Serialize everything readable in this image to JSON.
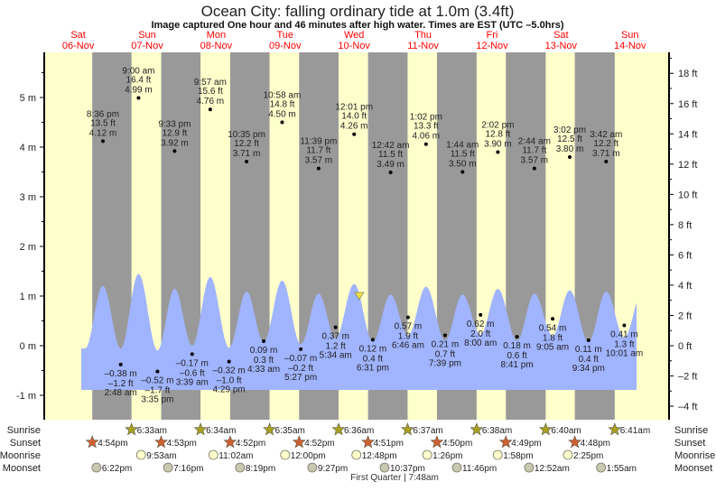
{
  "title": "Ocean City: falling  ordinary tide at 1.0m (3.4ft)",
  "subtitle": "Image captured One hour and 46 minutes after high water. Times are EST (UTC –5.0hrs)",
  "colors": {
    "day": "#ffffcc",
    "night": "#999999",
    "water": "#a0b4ff",
    "day_label": "#ff0000",
    "sunrise": "#a8a020",
    "sunset": "#d06030",
    "moonrise": "#ffffcc",
    "moonset": "#c8c8b0",
    "marker": "#f0e040"
  },
  "chart_data": {
    "type": "area",
    "title": "Ocean City: falling  ordinary tide at 1.0m (3.4ft)",
    "left_axis": {
      "unit": "m",
      "ylim": [
        -1.2,
        5.9
      ],
      "ticks": [
        -1,
        0,
        1,
        2,
        3,
        4,
        5
      ]
    },
    "right_axis": {
      "unit": "ft",
      "ticks": [
        -4,
        -2,
        0,
        2,
        4,
        6,
        8,
        10,
        12,
        14,
        16,
        18
      ]
    },
    "days": [
      {
        "dow": "Sat",
        "date": "06-Nov"
      },
      {
        "dow": "Sun",
        "date": "07-Nov"
      },
      {
        "dow": "Mon",
        "date": "08-Nov"
      },
      {
        "dow": "Tue",
        "date": "09-Nov"
      },
      {
        "dow": "Wed",
        "date": "10-Nov"
      },
      {
        "dow": "Thu",
        "date": "11-Nov"
      },
      {
        "dow": "Fri",
        "date": "12-Nov"
      },
      {
        "dow": "Sat",
        "date": "13-Nov"
      },
      {
        "dow": "Sun",
        "date": "14-Nov"
      }
    ],
    "current": {
      "day": "10-Nov",
      "time": "1:47 pm",
      "m": 1.0,
      "ft": 3.4
    },
    "tides": [
      {
        "type": "high",
        "day": "06-Nov",
        "time": "8:36 pm",
        "ft": "13.5 ft",
        "m": 4.12
      },
      {
        "type": "low",
        "day": "07-Nov",
        "time": "2:48 am",
        "ft": "–1.2 ft",
        "m": -0.38
      },
      {
        "type": "high",
        "day": "07-Nov",
        "time": "9:00 am",
        "ft": "16.4 ft",
        "m": 4.99
      },
      {
        "type": "low",
        "day": "07-Nov",
        "time": "3:35 pm",
        "ft": "–1.7 ft",
        "m": -0.52
      },
      {
        "type": "high",
        "day": "07-Nov",
        "time": "9:33 pm",
        "ft": "12.9 ft",
        "m": 3.92
      },
      {
        "type": "low",
        "day": "08-Nov",
        "time": "3:39 am",
        "ft": "–0.6 ft",
        "m": -0.17
      },
      {
        "type": "high",
        "day": "08-Nov",
        "time": "9:57 am",
        "ft": "15.6 ft",
        "m": 4.76
      },
      {
        "type": "low",
        "day": "08-Nov",
        "time": "4:29 pm",
        "ft": "–1.0 ft",
        "m": -0.32
      },
      {
        "type": "high",
        "day": "08-Nov",
        "time": "10:35 pm",
        "ft": "12.2 ft",
        "m": 3.71
      },
      {
        "type": "low",
        "day": "09-Nov",
        "time": "4:33 am",
        "ft": "0.3 ft",
        "m": 0.09
      },
      {
        "type": "high",
        "day": "09-Nov",
        "time": "10:58 am",
        "ft": "14.8 ft",
        "m": 4.5
      },
      {
        "type": "low",
        "day": "09-Nov",
        "time": "5:27 pm",
        "ft": "–0.2 ft",
        "m": -0.07
      },
      {
        "type": "high",
        "day": "09-Nov",
        "time": "11:39 pm",
        "ft": "11.7 ft",
        "m": 3.57
      },
      {
        "type": "low",
        "day": "10-Nov",
        "time": "5:34 am",
        "ft": "1.2 ft",
        "m": 0.37
      },
      {
        "type": "high",
        "day": "10-Nov",
        "time": "12:01 pm",
        "ft": "14.0 ft",
        "m": 4.26
      },
      {
        "type": "low",
        "day": "10-Nov",
        "time": "6:31 pm",
        "ft": "0.4 ft",
        "m": 0.12
      },
      {
        "type": "high",
        "day": "11-Nov",
        "time": "12:42 am",
        "ft": "11.5 ft",
        "m": 3.49
      },
      {
        "type": "low",
        "day": "11-Nov",
        "time": "6:46 am",
        "ft": "1.9 ft",
        "m": 0.57
      },
      {
        "type": "high",
        "day": "11-Nov",
        "time": "1:02 pm",
        "ft": "13.3 ft",
        "m": 4.06
      },
      {
        "type": "low",
        "day": "11-Nov",
        "time": "7:39 pm",
        "ft": "0.7 ft",
        "m": 0.21
      },
      {
        "type": "high",
        "day": "12-Nov",
        "time": "1:44 am",
        "ft": "11.5 ft",
        "m": 3.5
      },
      {
        "type": "low",
        "day": "12-Nov",
        "time": "8:00 am",
        "ft": "2.0 ft",
        "m": 0.62
      },
      {
        "type": "high",
        "day": "12-Nov",
        "time": "2:02 pm",
        "ft": "12.8 ft",
        "m": 3.9
      },
      {
        "type": "low",
        "day": "12-Nov",
        "time": "8:41 pm",
        "ft": "0.6 ft",
        "m": 0.18
      },
      {
        "type": "high",
        "day": "13-Nov",
        "time": "2:44 am",
        "ft": "11.7 ft",
        "m": 3.57
      },
      {
        "type": "low",
        "day": "13-Nov",
        "time": "9:05 am",
        "ft": "1.8 ft",
        "m": 0.54
      },
      {
        "type": "high",
        "day": "13-Nov",
        "time": "3:02 pm",
        "ft": "12.5 ft",
        "m": 3.8
      },
      {
        "type": "low",
        "day": "13-Nov",
        "time": "9:34 pm",
        "ft": "0.4 ft",
        "m": 0.11
      },
      {
        "type": "high",
        "day": "14-Nov",
        "time": "3:42 am",
        "ft": "12.2 ft",
        "m": 3.71
      },
      {
        "type": "low",
        "day": "14-Nov",
        "time": "10:01 am",
        "ft": "1.3 ft",
        "m": 0.41
      }
    ]
  },
  "almanac": {
    "rows": {
      "sunrise": "Sunrise",
      "sunset": "Sunset",
      "moonrise": "Moonrise",
      "moonset": "Moonset"
    },
    "sunrise": [
      {
        "day": "07-Nov",
        "time": "6:33am"
      },
      {
        "day": "08-Nov",
        "time": "6:34am"
      },
      {
        "day": "09-Nov",
        "time": "6:35am"
      },
      {
        "day": "10-Nov",
        "time": "6:36am"
      },
      {
        "day": "11-Nov",
        "time": "6:37am"
      },
      {
        "day": "12-Nov",
        "time": "6:38am"
      },
      {
        "day": "13-Nov",
        "time": "6:40am"
      },
      {
        "day": "14-Nov",
        "time": "6:41am"
      }
    ],
    "sunset": [
      {
        "day": "06-Nov",
        "time": "4:54pm"
      },
      {
        "day": "07-Nov",
        "time": "4:53pm"
      },
      {
        "day": "08-Nov",
        "time": "4:52pm"
      },
      {
        "day": "09-Nov",
        "time": "4:52pm"
      },
      {
        "day": "10-Nov",
        "time": "4:51pm"
      },
      {
        "day": "11-Nov",
        "time": "4:50pm"
      },
      {
        "day": "12-Nov",
        "time": "4:49pm"
      },
      {
        "day": "13-Nov",
        "time": "4:48pm"
      }
    ],
    "moonrise": [
      {
        "day": "07-Nov",
        "time": "9:53am"
      },
      {
        "day": "08-Nov",
        "time": "11:02am"
      },
      {
        "day": "09-Nov",
        "time": "12:00pm"
      },
      {
        "day": "10-Nov",
        "time": "12:48pm"
      },
      {
        "day": "11-Nov",
        "time": "1:26pm"
      },
      {
        "day": "12-Nov",
        "time": "1:58pm"
      },
      {
        "day": "13-Nov",
        "time": "2:25pm"
      }
    ],
    "moonset": [
      {
        "day": "06-Nov",
        "time": "6:22pm"
      },
      {
        "day": "07-Nov",
        "time": "7:16pm"
      },
      {
        "day": "08-Nov",
        "time": "8:19pm"
      },
      {
        "day": "09-Nov",
        "time": "9:27pm"
      },
      {
        "day": "10-Nov",
        "time": "10:37pm"
      },
      {
        "day": "11-Nov",
        "time": "11:46pm"
      },
      {
        "day": "13-Nov",
        "time": "12:52am"
      },
      {
        "day": "14-Nov",
        "time": "1:55am"
      }
    ],
    "moon_phase": "First Quarter | 7:48am"
  }
}
